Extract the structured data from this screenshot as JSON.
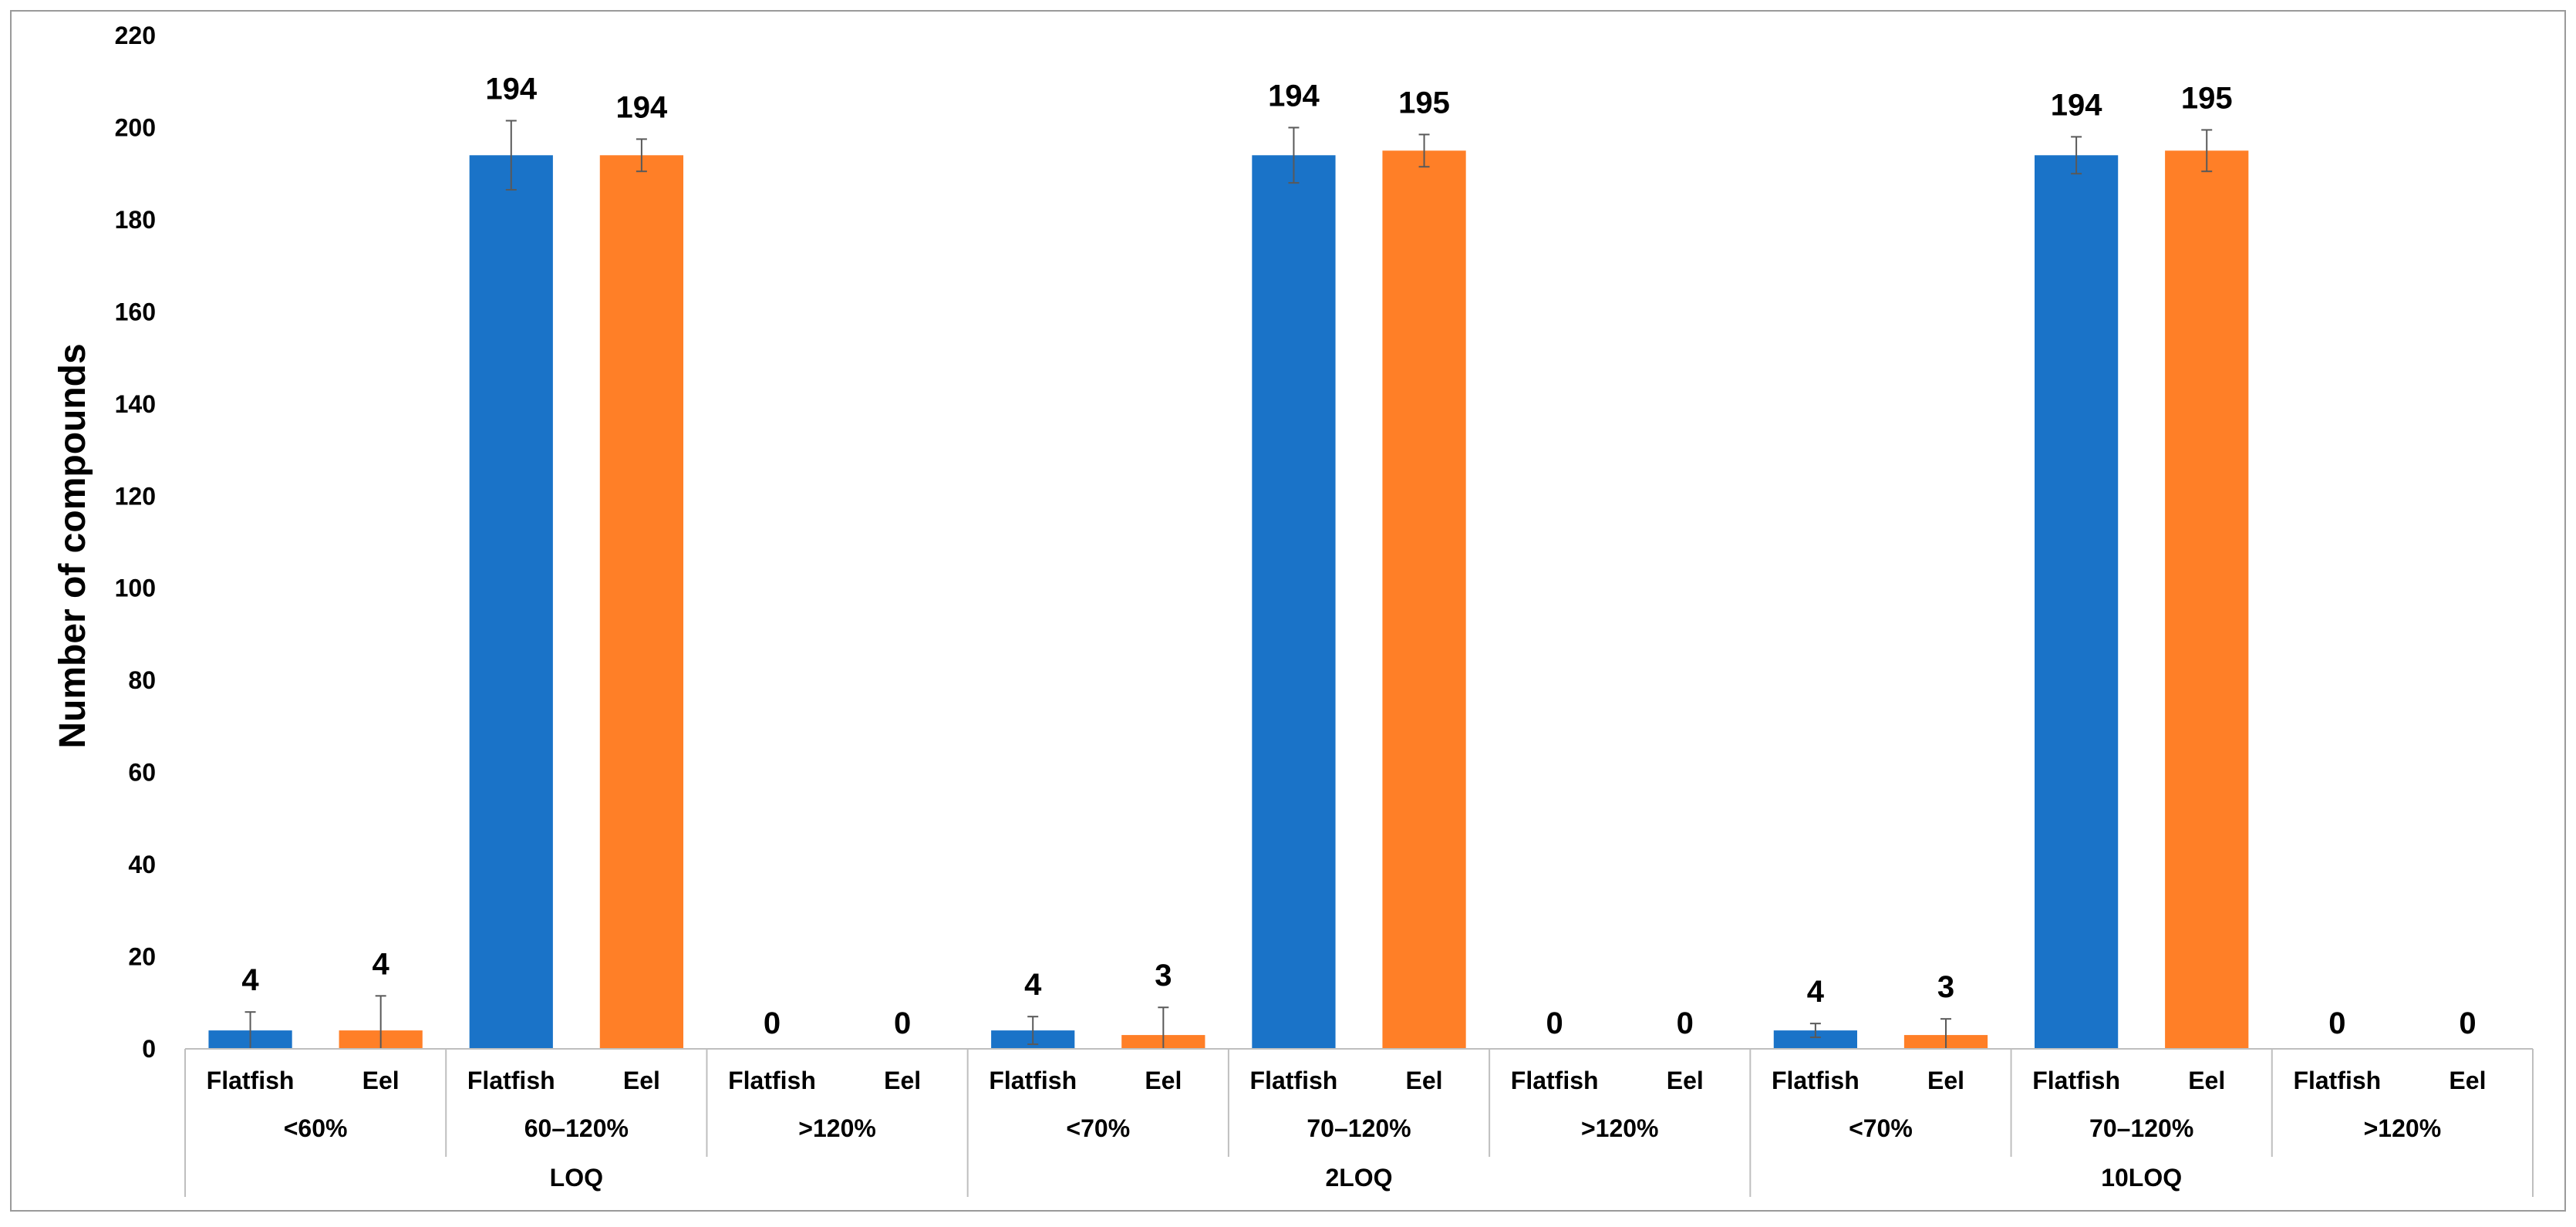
{
  "chart_data": {
    "type": "bar",
    "title": "",
    "xlabel": "",
    "ylabel": "Number of compounds",
    "ylim": [
      0,
      220
    ],
    "yticks": [
      0,
      20,
      40,
      60,
      80,
      100,
      120,
      140,
      160,
      180,
      200,
      220
    ],
    "grid": false,
    "legend": "none",
    "colors": {
      "Flatfish": "#1a73c8",
      "Eel": "#ff7f27"
    },
    "groups": [
      {
        "level": "LOQ",
        "ranges": [
          {
            "range": "<60%",
            "bars": [
              {
                "label": "Flatfish",
                "value": 4,
                "error": 4
              },
              {
                "label": "Eel",
                "value": 4,
                "error": 7.5
              }
            ]
          },
          {
            "range": "60–120%",
            "bars": [
              {
                "label": "Flatfish",
                "value": 194,
                "error": 7.5
              },
              {
                "label": "Eel",
                "value": 194,
                "error": 3.5
              }
            ]
          },
          {
            "range": ">120%",
            "bars": [
              {
                "label": "Flatfish",
                "value": 0,
                "error": 0
              },
              {
                "label": "Eel",
                "value": 0,
                "error": 0
              }
            ]
          }
        ]
      },
      {
        "level": "2LOQ",
        "ranges": [
          {
            "range": "<70%",
            "bars": [
              {
                "label": "Flatfish",
                "value": 4,
                "error": 3
              },
              {
                "label": "Eel",
                "value": 3,
                "error": 6
              }
            ]
          },
          {
            "range": "70–120%",
            "bars": [
              {
                "label": "Flatfish",
                "value": 194,
                "error": 6
              },
              {
                "label": "Eel",
                "value": 195,
                "error": 3.5
              }
            ]
          },
          {
            "range": ">120%",
            "bars": [
              {
                "label": "Flatfish",
                "value": 0,
                "error": 0
              },
              {
                "label": "Eel",
                "value": 0,
                "error": 0
              }
            ]
          }
        ]
      },
      {
        "level": "10LOQ",
        "ranges": [
          {
            "range": "<70%",
            "bars": [
              {
                "label": "Flatfish",
                "value": 4,
                "error": 1.5
              },
              {
                "label": "Eel",
                "value": 3,
                "error": 3.5
              }
            ]
          },
          {
            "range": "70–120%",
            "bars": [
              {
                "label": "Flatfish",
                "value": 194,
                "error": 4
              },
              {
                "label": "Eel",
                "value": 195,
                "error": 4.5
              }
            ]
          },
          {
            "range": ">120%",
            "bars": [
              {
                "label": "Flatfish",
                "value": 0,
                "error": 0
              },
              {
                "label": "Eel",
                "value": 0,
                "error": 0
              }
            ]
          }
        ]
      }
    ]
  }
}
